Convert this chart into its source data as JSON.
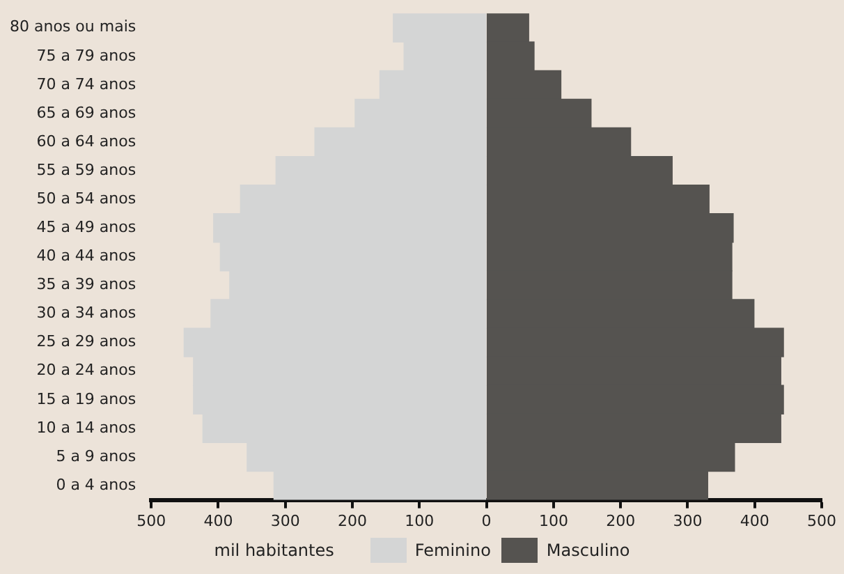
{
  "chart_data": {
    "type": "bar",
    "orientation": "horizontal",
    "stacked": true,
    "xlabel": "mil habitantes",
    "legend": "bottom",
    "grid": false,
    "categories": [
      "80 anos ou mais",
      "75 a 79 anos",
      "70 a 74 anos",
      "65 a 69 anos",
      "60 a 64 anos",
      "55 a 59 anos",
      "50 a 54 anos",
      "45 a 49 anos",
      "40 a 44 anos",
      "35 a 39 anos",
      "30 a 34 anos",
      "25 a 29 anos",
      "20 a 24 anos",
      "15 a 19 anos",
      "10 a 14 anos",
      "5 a 9 anos",
      "0 a 4 anos"
    ],
    "xlim": [
      -500,
      500
    ],
    "xticks": [
      {
        "value": -500,
        "label": "500"
      },
      {
        "value": -400,
        "label": "400"
      },
      {
        "value": -300,
        "label": "300"
      },
      {
        "value": -200,
        "label": "200"
      },
      {
        "value": -100,
        "label": "100"
      },
      0,
      100,
      200,
      300,
      400,
      500
    ],
    "series": [
      {
        "name": "Feminino",
        "color": "#d4d5d5",
        "values": [
          -139,
          -123,
          -159,
          -196,
          -256,
          -314,
          -367,
          -407,
          -397,
          -383,
          -411,
          -451,
          -437,
          -437,
          -423,
          -357,
          -317
        ]
      },
      {
        "name": "Masculino",
        "color": "#555350",
        "values": [
          63,
          71,
          111,
          156,
          215,
          277,
          332,
          368,
          366,
          366,
          399,
          443,
          439,
          443,
          439,
          370,
          330
        ]
      }
    ]
  }
}
